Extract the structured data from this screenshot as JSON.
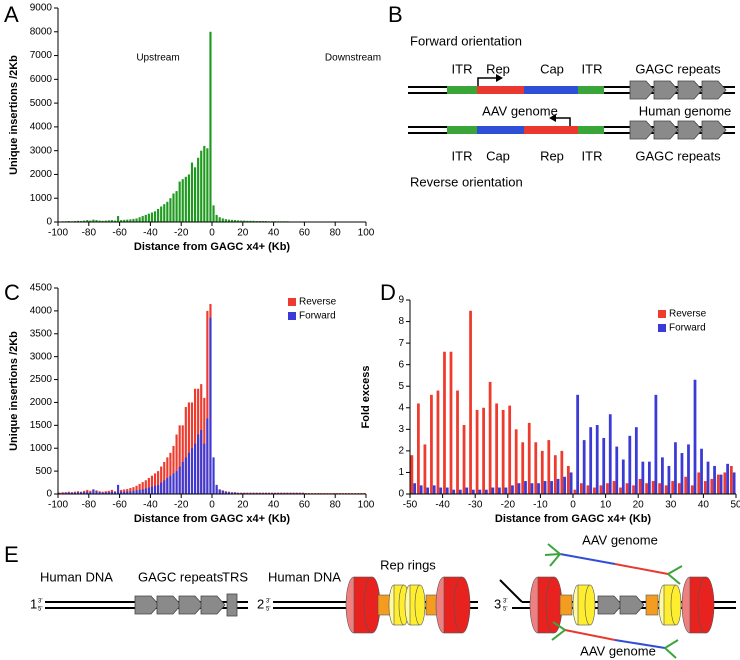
{
  "panel_labels": [
    "A",
    "B",
    "C",
    "D",
    "E"
  ],
  "chart_data": [
    {
      "type": "bar",
      "barmode": "overlay",
      "color": "#1e9a1e",
      "xlabel": "Distance from GAGC x4+ (Kb)",
      "ylabel": "Unique insertions /2Kb",
      "annotations": [
        "Upstream",
        "Downstream"
      ],
      "x": [
        -99,
        -97,
        -95,
        -93,
        -91,
        -89,
        -87,
        -85,
        -83,
        -81,
        -79,
        -77,
        -75,
        -73,
        -71,
        -69,
        -67,
        -65,
        -63,
        -61,
        -59,
        -57,
        -55,
        -53,
        -51,
        -49,
        -47,
        -45,
        -43,
        -41,
        -39,
        -37,
        -35,
        -33,
        -31,
        -29,
        -27,
        -25,
        -23,
        -21,
        -19,
        -17,
        -15,
        -13,
        -11,
        -9,
        -7,
        -5,
        -3,
        -1,
        1,
        3,
        5,
        7,
        9,
        11,
        13,
        15,
        17,
        19,
        21,
        23,
        25,
        27,
        29,
        31,
        33,
        35,
        37,
        39,
        41,
        43,
        45,
        47,
        49,
        51,
        53,
        55,
        57,
        59,
        61,
        63,
        65,
        67,
        69,
        71,
        73,
        75,
        77,
        79,
        81,
        83,
        85,
        87,
        89,
        91,
        93,
        95,
        97,
        99
      ],
      "values": [
        20,
        30,
        30,
        40,
        30,
        40,
        50,
        40,
        60,
        80,
        60,
        100,
        80,
        60,
        50,
        60,
        70,
        80,
        60,
        250,
        80,
        90,
        100,
        110,
        130,
        150,
        200,
        250,
        300,
        350,
        400,
        450,
        550,
        650,
        750,
        850,
        1000,
        1200,
        1300,
        1700,
        1800,
        1900,
        2000,
        2500,
        2300,
        2700,
        3000,
        3200,
        3100,
        8000,
        700,
        300,
        200,
        150,
        120,
        100,
        90,
        80,
        70,
        60,
        60,
        50,
        50,
        50,
        40,
        40,
        40,
        40,
        30,
        30,
        30,
        30,
        30,
        30,
        30,
        20,
        20,
        20,
        20,
        20,
        20,
        20,
        20,
        20,
        20,
        20,
        20,
        20,
        20,
        20,
        20,
        20,
        20,
        20,
        20,
        20,
        20,
        20,
        20,
        20
      ],
      "xlim": [
        -100,
        100
      ],
      "xticks": [
        -100,
        -80,
        -60,
        -40,
        -20,
        0,
        20,
        40,
        60,
        80,
        100
      ],
      "ylim": [
        0,
        9000
      ],
      "yticks": [
        0,
        1000,
        2000,
        3000,
        4000,
        5000,
        6000,
        7000,
        8000,
        9000
      ]
    },
    {
      "type": "bar",
      "barmode": "overlay",
      "legend": "upper right",
      "xlabel": "Distance from GAGC x4+ (Kb)",
      "ylabel": "Unique insertions /2Kb",
      "x": [
        -99,
        -97,
        -95,
        -93,
        -91,
        -89,
        -87,
        -85,
        -83,
        -81,
        -79,
        -77,
        -75,
        -73,
        -71,
        -69,
        -67,
        -65,
        -63,
        -61,
        -59,
        -57,
        -55,
        -53,
        -51,
        -49,
        -47,
        -45,
        -43,
        -41,
        -39,
        -37,
        -35,
        -33,
        -31,
        -29,
        -27,
        -25,
        -23,
        -21,
        -19,
        -17,
        -15,
        -13,
        -11,
        -9,
        -7,
        -5,
        -3,
        -1,
        1,
        3,
        5,
        7,
        9,
        11,
        13,
        15,
        17,
        19,
        21,
        23,
        25,
        27,
        29,
        31,
        33,
        35,
        37,
        39,
        41,
        43,
        45,
        47,
        49,
        51,
        53,
        55,
        57,
        59,
        61,
        63,
        65,
        67,
        69,
        71,
        73,
        75,
        77,
        79,
        81,
        83,
        85,
        87,
        89,
        91,
        93,
        95,
        97,
        99
      ],
      "series": [
        {
          "name": "Reverse",
          "color": "#ee3b2e",
          "values": [
            30,
            40,
            40,
            50,
            40,
            50,
            60,
            50,
            70,
            90,
            70,
            100,
            80,
            60,
            50,
            60,
            70,
            90,
            60,
            80,
            90,
            100,
            110,
            130,
            150,
            180,
            220,
            260,
            300,
            350,
            400,
            450,
            500,
            600,
            700,
            800,
            900,
            1050,
            1300,
            1500,
            1500,
            1900,
            2000,
            2000,
            2300,
            2300,
            2400,
            2100,
            4000,
            4150,
            300,
            150,
            100,
            80,
            60,
            50,
            40,
            40,
            30,
            30,
            30,
            30,
            30,
            30,
            30,
            30,
            30,
            30,
            30,
            30,
            30,
            30,
            30,
            30,
            30,
            30,
            30,
            30,
            30,
            30,
            20,
            20,
            20,
            20,
            20,
            20,
            20,
            20,
            20,
            20,
            20,
            20,
            20,
            20,
            20,
            20,
            20,
            20,
            20,
            20
          ]
        },
        {
          "name": "Forward",
          "color": "#3a3ad6",
          "values": [
            20,
            20,
            30,
            30,
            30,
            30,
            40,
            40,
            40,
            50,
            40,
            100,
            60,
            40,
            30,
            40,
            40,
            50,
            40,
            200,
            50,
            50,
            60,
            60,
            70,
            80,
            90,
            100,
            120,
            140,
            160,
            180,
            200,
            250,
            300,
            350,
            400,
            450,
            500,
            600,
            700,
            800,
            900,
            1000,
            1100,
            1300,
            1400,
            1100,
            1650,
            3850,
            800,
            200,
            100,
            70,
            50,
            40,
            30,
            30,
            20,
            20,
            20,
            20,
            20,
            20,
            20,
            20,
            20,
            20,
            20,
            20,
            20,
            20,
            20,
            20,
            20,
            20,
            20,
            20,
            20,
            20,
            10,
            10,
            10,
            10,
            10,
            10,
            10,
            10,
            10,
            10,
            10,
            10,
            10,
            10,
            10,
            10,
            10,
            10,
            10,
            10
          ]
        }
      ],
      "xlim": [
        -100,
        100
      ],
      "xticks": [
        -100,
        -80,
        -60,
        -40,
        -20,
        0,
        20,
        40,
        60,
        80,
        100
      ],
      "ylim": [
        0,
        4500
      ],
      "yticks": [
        0,
        500,
        1000,
        1500,
        2000,
        2500,
        3000,
        3500,
        4000,
        4500
      ]
    },
    {
      "type": "bar",
      "barmode": "group",
      "legend": "upper right",
      "xlabel": "Distance from GAGC x4+ (Kb)",
      "ylabel": "Fold excess",
      "x": [
        -49,
        -47,
        -45,
        -43,
        -41,
        -39,
        -37,
        -35,
        -33,
        -31,
        -29,
        -27,
        -25,
        -23,
        -21,
        -19,
        -17,
        -15,
        -13,
        -11,
        -9,
        -7,
        -5,
        -3,
        -1,
        1,
        3,
        5,
        7,
        9,
        11,
        13,
        15,
        17,
        19,
        21,
        23,
        25,
        27,
        29,
        31,
        33,
        35,
        37,
        39,
        41,
        43,
        45,
        47,
        49
      ],
      "series": [
        {
          "name": "Reverse",
          "color": "#ee3b2e",
          "values": [
            1.8,
            4.2,
            2.3,
            4.6,
            4.8,
            6.6,
            6.6,
            4.8,
            3.2,
            8.5,
            3.9,
            4.0,
            5.2,
            4.2,
            3.9,
            4.1,
            3.0,
            2.4,
            3.3,
            2.4,
            2.0,
            2.5,
            1.8,
            2.0,
            1.3,
            0.2,
            0.5,
            0.4,
            0.3,
            0.4,
            0.5,
            0.6,
            0.3,
            0.5,
            0.4,
            0.7,
            0.5,
            0.6,
            0.5,
            0.4,
            0.6,
            0.5,
            0.8,
            0.4,
            1.0,
            0.6,
            0.7,
            0.9,
            1.0,
            1.3
          ]
        },
        {
          "name": "Forward",
          "color": "#3a3ad6",
          "values": [
            0.5,
            0.4,
            0.3,
            0.4,
            0.3,
            0.3,
            0.2,
            0.2,
            0.3,
            0.2,
            0.2,
            0.2,
            0.3,
            0.3,
            0.3,
            0.4,
            0.5,
            0.6,
            0.5,
            0.5,
            0.6,
            0.6,
            0.7,
            0.8,
            1.0,
            4.6,
            2.5,
            3.1,
            3.2,
            2.6,
            3.7,
            2.2,
            1.6,
            2.7,
            3.1,
            1.5,
            1.5,
            4.6,
            1.7,
            1.3,
            2.4,
            1.9,
            2.3,
            5.3,
            2.1,
            1.5,
            1.3,
            0.9,
            1.4,
            1.0
          ]
        }
      ],
      "xlim": [
        -50,
        50
      ],
      "xticks": [
        -50,
        -40,
        -30,
        -20,
        -10,
        0,
        10,
        20,
        30,
        40,
        50
      ],
      "ylim": [
        0,
        9
      ],
      "yticks": [
        0,
        1,
        2,
        3,
        4,
        5,
        6,
        7,
        8,
        9
      ]
    }
  ],
  "diagram_b": {
    "forward": {
      "title": "Forward orientation",
      "labels": [
        "ITR",
        "Rep",
        "Cap",
        "ITR",
        "GAGC repeats"
      ]
    },
    "middle": [
      "AAV genome",
      "Human genome"
    ],
    "reverse": {
      "labels": [
        "ITR",
        "Cap",
        "Rep",
        "ITR",
        "GAGC repeats"
      ],
      "title": "Reverse orientation"
    }
  },
  "diagram_e": {
    "strand_ends": [
      "3'",
      "5'"
    ],
    "steps": [
      {
        "number": "1",
        "labels": [
          "Human DNA",
          "GAGC repeats",
          "TRS"
        ]
      },
      {
        "number": "2",
        "labels": [
          "Human DNA",
          "Rep rings"
        ]
      },
      {
        "number": "3",
        "labels": [
          "AAV genome",
          "AAV genome"
        ]
      }
    ]
  }
}
